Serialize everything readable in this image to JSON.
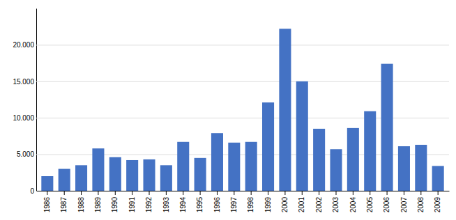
{
  "chart_data": {
    "type": "bar",
    "categories": [
      "1986",
      "1987",
      "1988",
      "1989",
      "1990",
      "1991",
      "1992",
      "1993",
      "1994",
      "1995",
      "1996",
      "1997",
      "1998",
      "1999",
      "2000",
      "2001",
      "2002",
      "2003",
      "2004",
      "2005",
      "2006",
      "2007",
      "2008",
      "2009"
    ],
    "values": [
      2000,
      3000,
      3500,
      5800,
      4600,
      4200,
      4300,
      3500,
      6700,
      4500,
      7900,
      6600,
      6700,
      12100,
      22200,
      15000,
      8500,
      5700,
      8600,
      10900,
      17400,
      6100,
      6300,
      3400
    ],
    "color": "#4472C4",
    "ylim": [
      0,
      25000
    ],
    "yticks": [
      0,
      {
        "value": 5000,
        "label": "5.000"
      },
      {
        "value": 10000,
        "label": "10.000"
      },
      {
        "value": 15000,
        "label": "15.000"
      },
      {
        "value": 20000,
        "label": "20.000"
      }
    ],
    "grid": true
  }
}
